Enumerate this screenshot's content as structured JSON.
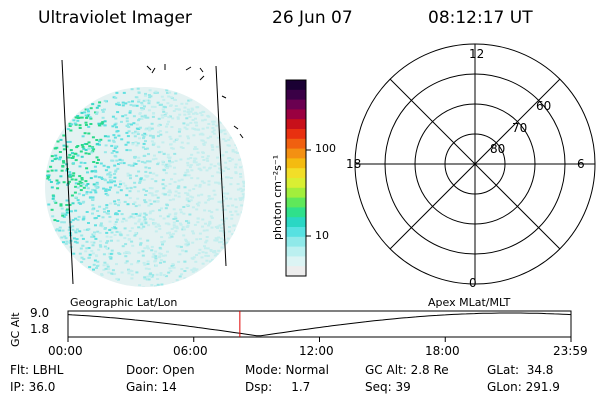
{
  "header": {
    "instrument": "Ultraviolet Imager",
    "date": "26 Jun 07",
    "time": "08:12:17 UT"
  },
  "colorbar": {
    "unit_label": "photon cm⁻²s⁻¹",
    "ticks": [
      "100",
      "10"
    ],
    "colors": [
      "#1a0033",
      "#3a0046",
      "#6a0050",
      "#9a0040",
      "#c8101a",
      "#e83010",
      "#f06010",
      "#f39012",
      "#f4bb10",
      "#f2de28",
      "#d9ef33",
      "#a2ee3c",
      "#5fe85a",
      "#2fe08b",
      "#2ad7c4",
      "#57e1e1",
      "#8fe9e9",
      "#bbf0f0",
      "#dcf4f4",
      "#ededed"
    ]
  },
  "polar_plot": {
    "mlt_labels": {
      "top": "12",
      "left": "18",
      "right": "6",
      "bottom": "0"
    },
    "lat_labels": [
      "60",
      "70",
      "80"
    ]
  },
  "timeline": {
    "left_label": "Geographic Lat/Lon",
    "right_label": "Apex MLat/MLT",
    "y_axis_label": "GC Alt",
    "y_max": "9.0",
    "y_min": "1.8",
    "x_ticks": [
      "00:00",
      "06:00",
      "12:00",
      "18:00",
      "23:59"
    ],
    "marker_time_hours": 8.2,
    "marker_color": "#e00000"
  },
  "status": {
    "flt": "Flt: LBHL",
    "ip": "IP: 36.0",
    "door": "Door: Open",
    "gain": "Gain: 14",
    "mode": "Mode: Normal",
    "dsp": "Dsp:     1.7",
    "gc_alt": "GC Alt: 2.8 Re",
    "seq": "Seq: 39",
    "glat": "GLat:  34.8",
    "glon": "GLon: 291.9"
  }
}
